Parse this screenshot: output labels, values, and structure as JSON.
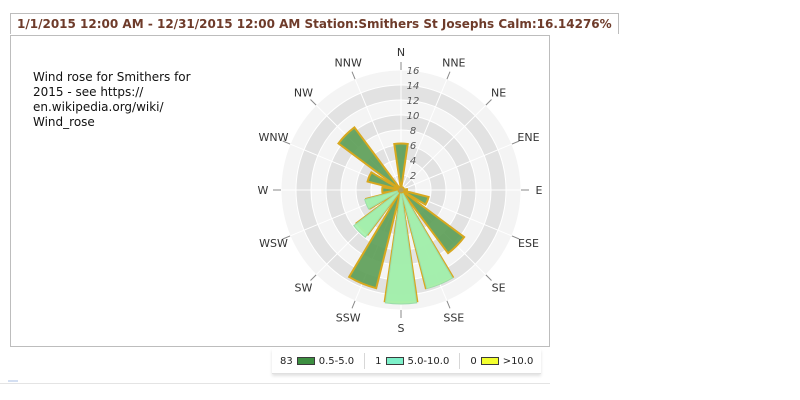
{
  "header": {
    "title": "1/1/2015 12:00 AM - 12/31/2015 12:00 AM Station:Smithers St Josephs Calm:16.14276%"
  },
  "note": {
    "text": "Wind rose for Smithers for\n2015 - see https://\nen.wikipedia.org/wiki/\nWind_rose"
  },
  "colors": {
    "title": "#6e3b2a",
    "band_light": "#f4f4f4",
    "band_mid": "#e2e2e2",
    "bar_fill": "#5d9e58",
    "bar_edge": "#d7a81f",
    "secondary_fill": "#a8f2b1"
  },
  "chart_data": {
    "type": "bar",
    "chart_style": "polar-wind-rose",
    "title": "1/1/2015 12:00 AM - 12/31/2015 12:00 AM Station:Smithers St Josephs Calm:16.14276%",
    "categories": [
      "N",
      "NNE",
      "NE",
      "ENE",
      "E",
      "ESE",
      "SE",
      "SSE",
      "S",
      "SSW",
      "SW",
      "WSW",
      "W",
      "WNW",
      "NW",
      "NNW"
    ],
    "radial_ticks": [
      "2",
      "4",
      "6",
      "8",
      "10",
      "12",
      "14",
      "16"
    ],
    "ylim": [
      0,
      16
    ],
    "grid": true,
    "legend_position": "bottom",
    "series": [
      {
        "name": "0.5-5.0",
        "count": 83,
        "color": "#5d9e58",
        "values": [
          6.2,
          0.4,
          0.4,
          0.4,
          0.8,
          3.8,
          10.5,
          13.5,
          15.0,
          13.5,
          7.4,
          4.8,
          2.5,
          4.6,
          10.4,
          0.4
        ]
      },
      {
        "name": "5.0-10.0",
        "count": 1,
        "color": "#7df0c9",
        "values": [
          0,
          0,
          0,
          0,
          0,
          0,
          0,
          0.1,
          0.2,
          0,
          0.5,
          0.2,
          0,
          0,
          0,
          0
        ]
      },
      {
        "name": ">10.0",
        "count": 0,
        "color": "#f3ff2f",
        "values": [
          0,
          0,
          0,
          0,
          0,
          0,
          0,
          0,
          0,
          0,
          0,
          0,
          0,
          0,
          0,
          0
        ]
      }
    ]
  },
  "legend": {
    "items": [
      {
        "count": "83",
        "label": "0.5-5.0",
        "color": "#3d8f41"
      },
      {
        "count": "1",
        "label": "5.0-10.0",
        "color": "#7df0c9"
      },
      {
        "count": "0",
        "label": ">10.0",
        "color": "#f3ff2f"
      }
    ]
  }
}
